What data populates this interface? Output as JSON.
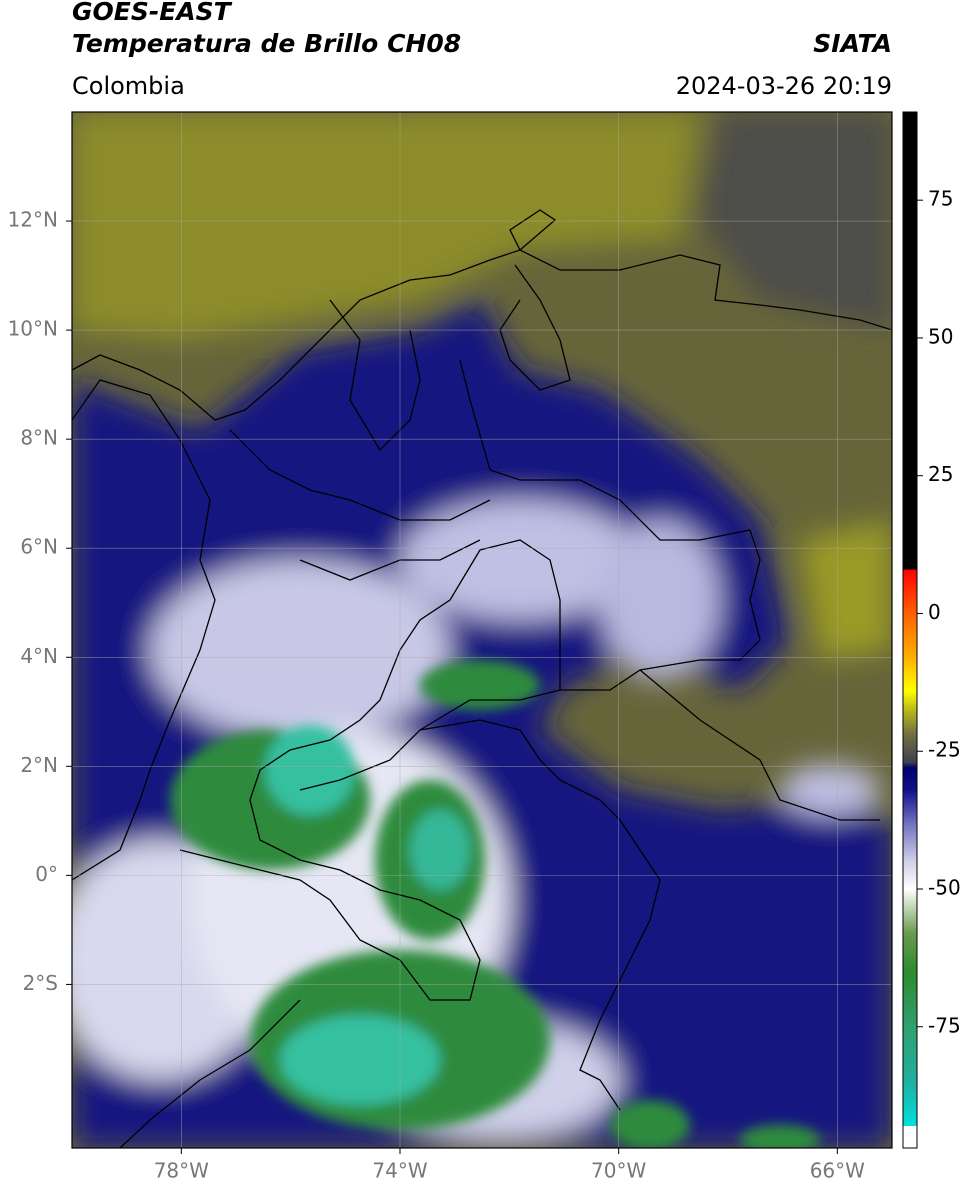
{
  "header": {
    "title": "GOES-EAST",
    "subtitle": "Temperatura de Brillo CH08",
    "source": "SIATA",
    "region": "Colombia",
    "datetime": "2024-03-26 20:19"
  },
  "map": {
    "xlim": [
      -80,
      -65
    ],
    "ylim": [
      -5,
      14
    ],
    "grid": true,
    "xticks": [
      {
        "value": -78,
        "label": "78°W"
      },
      {
        "value": -74,
        "label": "74°W"
      },
      {
        "value": -70,
        "label": "70°W"
      },
      {
        "value": -66,
        "label": "66°W"
      }
    ],
    "yticks": [
      {
        "value": 12,
        "label": "12°N"
      },
      {
        "value": 10,
        "label": "10°N"
      },
      {
        "value": 8,
        "label": "8°N"
      },
      {
        "value": 6,
        "label": "6°N"
      },
      {
        "value": 4,
        "label": "4°N"
      },
      {
        "value": 2,
        "label": "2°N"
      },
      {
        "value": 0,
        "label": "0°"
      },
      {
        "value": -2,
        "label": "2°S"
      }
    ]
  },
  "colorbar": {
    "lim": [
      -97,
      91
    ],
    "ticks": [
      75,
      50,
      25,
      0,
      -25,
      -50,
      -75
    ],
    "stops": [
      {
        "value": -97,
        "color": "#ffffff"
      },
      {
        "value": -93,
        "color": "#ffffff"
      },
      {
        "value": -93,
        "color": "#00e0e0"
      },
      {
        "value": -85,
        "color": "#20b0a0"
      },
      {
        "value": -75,
        "color": "#30a070"
      },
      {
        "value": -65,
        "color": "#2e8b2e"
      },
      {
        "value": -58,
        "color": "#6a9a50"
      },
      {
        "value": -52,
        "color": "#d8e8d0"
      },
      {
        "value": -50,
        "color": "#ffffff"
      },
      {
        "value": -45,
        "color": "#d0d0e8"
      },
      {
        "value": -38,
        "color": "#7070c0"
      },
      {
        "value": -32,
        "color": "#10108a"
      },
      {
        "value": -28,
        "color": "#000070"
      },
      {
        "value": -27,
        "color": "#404050"
      },
      {
        "value": -22,
        "color": "#707040"
      },
      {
        "value": -18,
        "color": "#b0b020"
      },
      {
        "value": -14,
        "color": "#ffff00"
      },
      {
        "value": -8,
        "color": "#ffb000"
      },
      {
        "value": 0,
        "color": "#ff6000"
      },
      {
        "value": 8,
        "color": "#ff0000"
      },
      {
        "value": 8,
        "color": "#000000"
      },
      {
        "value": 91,
        "color": "#000000"
      }
    ]
  }
}
